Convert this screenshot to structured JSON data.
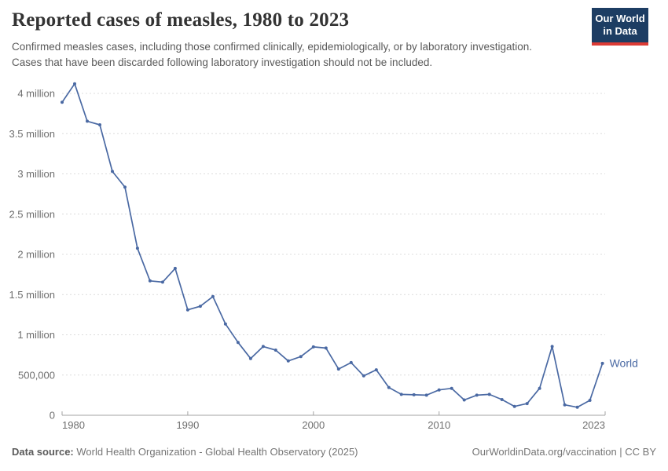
{
  "header": {
    "title": "Reported cases of measles, 1980 to 2023",
    "subtitle_lines": [
      "Confirmed measles cases, including those confirmed clinically, epidemiologically, or by laboratory investigation.",
      "Cases that have been discarded following laboratory investigation should not be included."
    ],
    "logo": {
      "line1": "Our World",
      "line2": "in Data",
      "bg_color": "#1d3d63",
      "accent_color": "#dc3b35"
    }
  },
  "footer": {
    "datasource_label": "Data source:",
    "datasource_value": " World Health Organization - Global Health Observatory (2025)",
    "link_text": "OurWorldinData.org/vaccination | CC BY"
  },
  "colors": {
    "line": "#4a69a3",
    "gridline": "#dcdcdc",
    "axis": "#a3a3a3",
    "tick_text": "#6e6e6e",
    "title_text": "#333333",
    "subtitle_text": "#595959"
  },
  "chart_data": {
    "type": "line",
    "title": "Reported cases of measles, 1980 to 2023",
    "xlabel": "",
    "ylabel": "",
    "xlim": [
      1980,
      2023
    ],
    "ylim": [
      0,
      4000000
    ],
    "grid": "horizontal dashed",
    "legend_position": "end-of-line label",
    "x_ticks": [
      {
        "year": 1980,
        "label": "1980",
        "anchor": "start"
      },
      {
        "year": 1990,
        "label": "1990",
        "anchor": "middle"
      },
      {
        "year": 2000,
        "label": "2000",
        "anchor": "middle"
      },
      {
        "year": 2010,
        "label": "2010",
        "anchor": "middle"
      },
      {
        "year": 2023,
        "label": "2023",
        "anchor": "end"
      }
    ],
    "y_ticks": [
      {
        "value": 0,
        "label": "0"
      },
      {
        "value": 500000,
        "label": "500,000"
      },
      {
        "value": 1000000,
        "label": "1 million"
      },
      {
        "value": 1500000,
        "label": "1.5 million"
      },
      {
        "value": 2000000,
        "label": "2 million"
      },
      {
        "value": 2500000,
        "label": "2.5 million"
      },
      {
        "value": 3000000,
        "label": "3 million"
      },
      {
        "value": 3500000,
        "label": "3.5 million"
      },
      {
        "value": 4000000,
        "label": "4 million"
      }
    ],
    "series": [
      {
        "name": "World",
        "color": "#4a69a3",
        "x": [
          1980,
          1981,
          1982,
          1983,
          1984,
          1985,
          1986,
          1987,
          1988,
          1989,
          1990,
          1991,
          1992,
          1993,
          1994,
          1995,
          1996,
          1997,
          1998,
          1999,
          2000,
          2001,
          2002,
          2003,
          2004,
          2005,
          2006,
          2007,
          2008,
          2009,
          2010,
          2011,
          2012,
          2013,
          2014,
          2015,
          2016,
          2017,
          2018,
          2019,
          2020,
          2021,
          2022,
          2023
        ],
        "values": [
          3890000,
          4120000,
          3655000,
          3610000,
          3030000,
          2835000,
          2075000,
          1670000,
          1655000,
          1825000,
          1310000,
          1355000,
          1475000,
          1135000,
          905000,
          705000,
          855000,
          810000,
          675000,
          730000,
          850000,
          835000,
          575000,
          655000,
          490000,
          565000,
          345000,
          260000,
          255000,
          250000,
          315000,
          335000,
          190000,
          250000,
          260000,
          195000,
          110000,
          145000,
          335000,
          855000,
          130000,
          100000,
          185000,
          645000
        ]
      }
    ]
  }
}
